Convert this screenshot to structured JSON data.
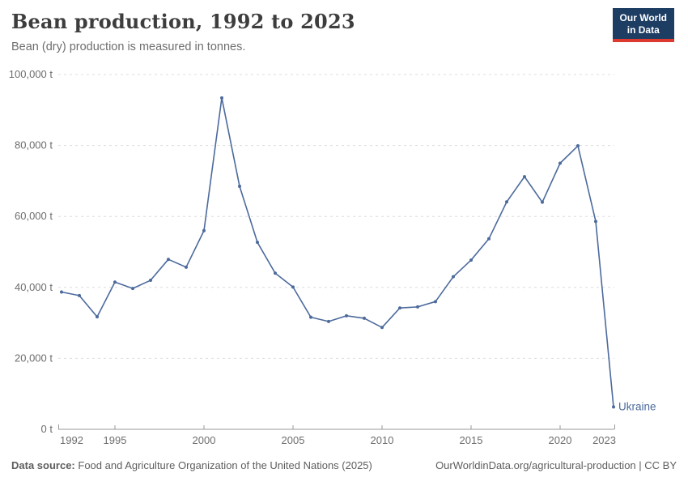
{
  "header": {
    "title": "Bean production, 1992 to 2023",
    "subtitle": "Bean (dry) production is measured in tonnes.",
    "logo": {
      "line1": "Our World",
      "line2": "in Data",
      "bg_color": "#1d3d63",
      "accent_color": "#dc3a2f"
    }
  },
  "chart_data": {
    "type": "line",
    "title": "Bean production, 1992 to 2023",
    "subtitle": "Bean (dry) production is measured in tonnes.",
    "xlabel": "",
    "ylabel": "",
    "unit": "t",
    "xlim": [
      1992,
      2023
    ],
    "ylim": [
      0,
      100000
    ],
    "grid": "horizontal-dashed",
    "legend_position": "end-of-line",
    "x": [
      1992,
      1993,
      1994,
      1995,
      1996,
      1997,
      1998,
      1999,
      2000,
      2001,
      2002,
      2003,
      2004,
      2005,
      2006,
      2007,
      2008,
      2009,
      2010,
      2011,
      2012,
      2013,
      2014,
      2015,
      2016,
      2017,
      2018,
      2019,
      2020,
      2021,
      2022,
      2023
    ],
    "series": [
      {
        "name": "Ukraine",
        "color": "#4c6a9c",
        "values": [
          38700,
          37700,
          31700,
          41500,
          39700,
          42000,
          47900,
          45700,
          56000,
          93400,
          68500,
          52700,
          44000,
          40100,
          31600,
          30400,
          32000,
          31300,
          28700,
          34200,
          34500,
          36000,
          43000,
          47700,
          53700,
          64100,
          71200,
          64000,
          75000,
          79900,
          58600,
          6300
        ]
      }
    ],
    "x_ticks": [
      1992,
      1995,
      2000,
      2005,
      2010,
      2015,
      2020,
      2023
    ],
    "y_ticks": [
      {
        "value": 0,
        "label": "0 t"
      },
      {
        "value": 20000,
        "label": "20,000 t"
      },
      {
        "value": 40000,
        "label": "40,000 t"
      },
      {
        "value": 60000,
        "label": "60,000 t"
      },
      {
        "value": 80000,
        "label": "80,000 t"
      },
      {
        "value": 100000,
        "label": "100,000 t"
      }
    ],
    "end_label": "Ukraine"
  },
  "footer": {
    "source_label": "Data source:",
    "source_text": "Food and Agriculture Organization of the United Nations (2025)",
    "license_text": "OurWorldinData.org/agricultural-production | CC BY"
  }
}
